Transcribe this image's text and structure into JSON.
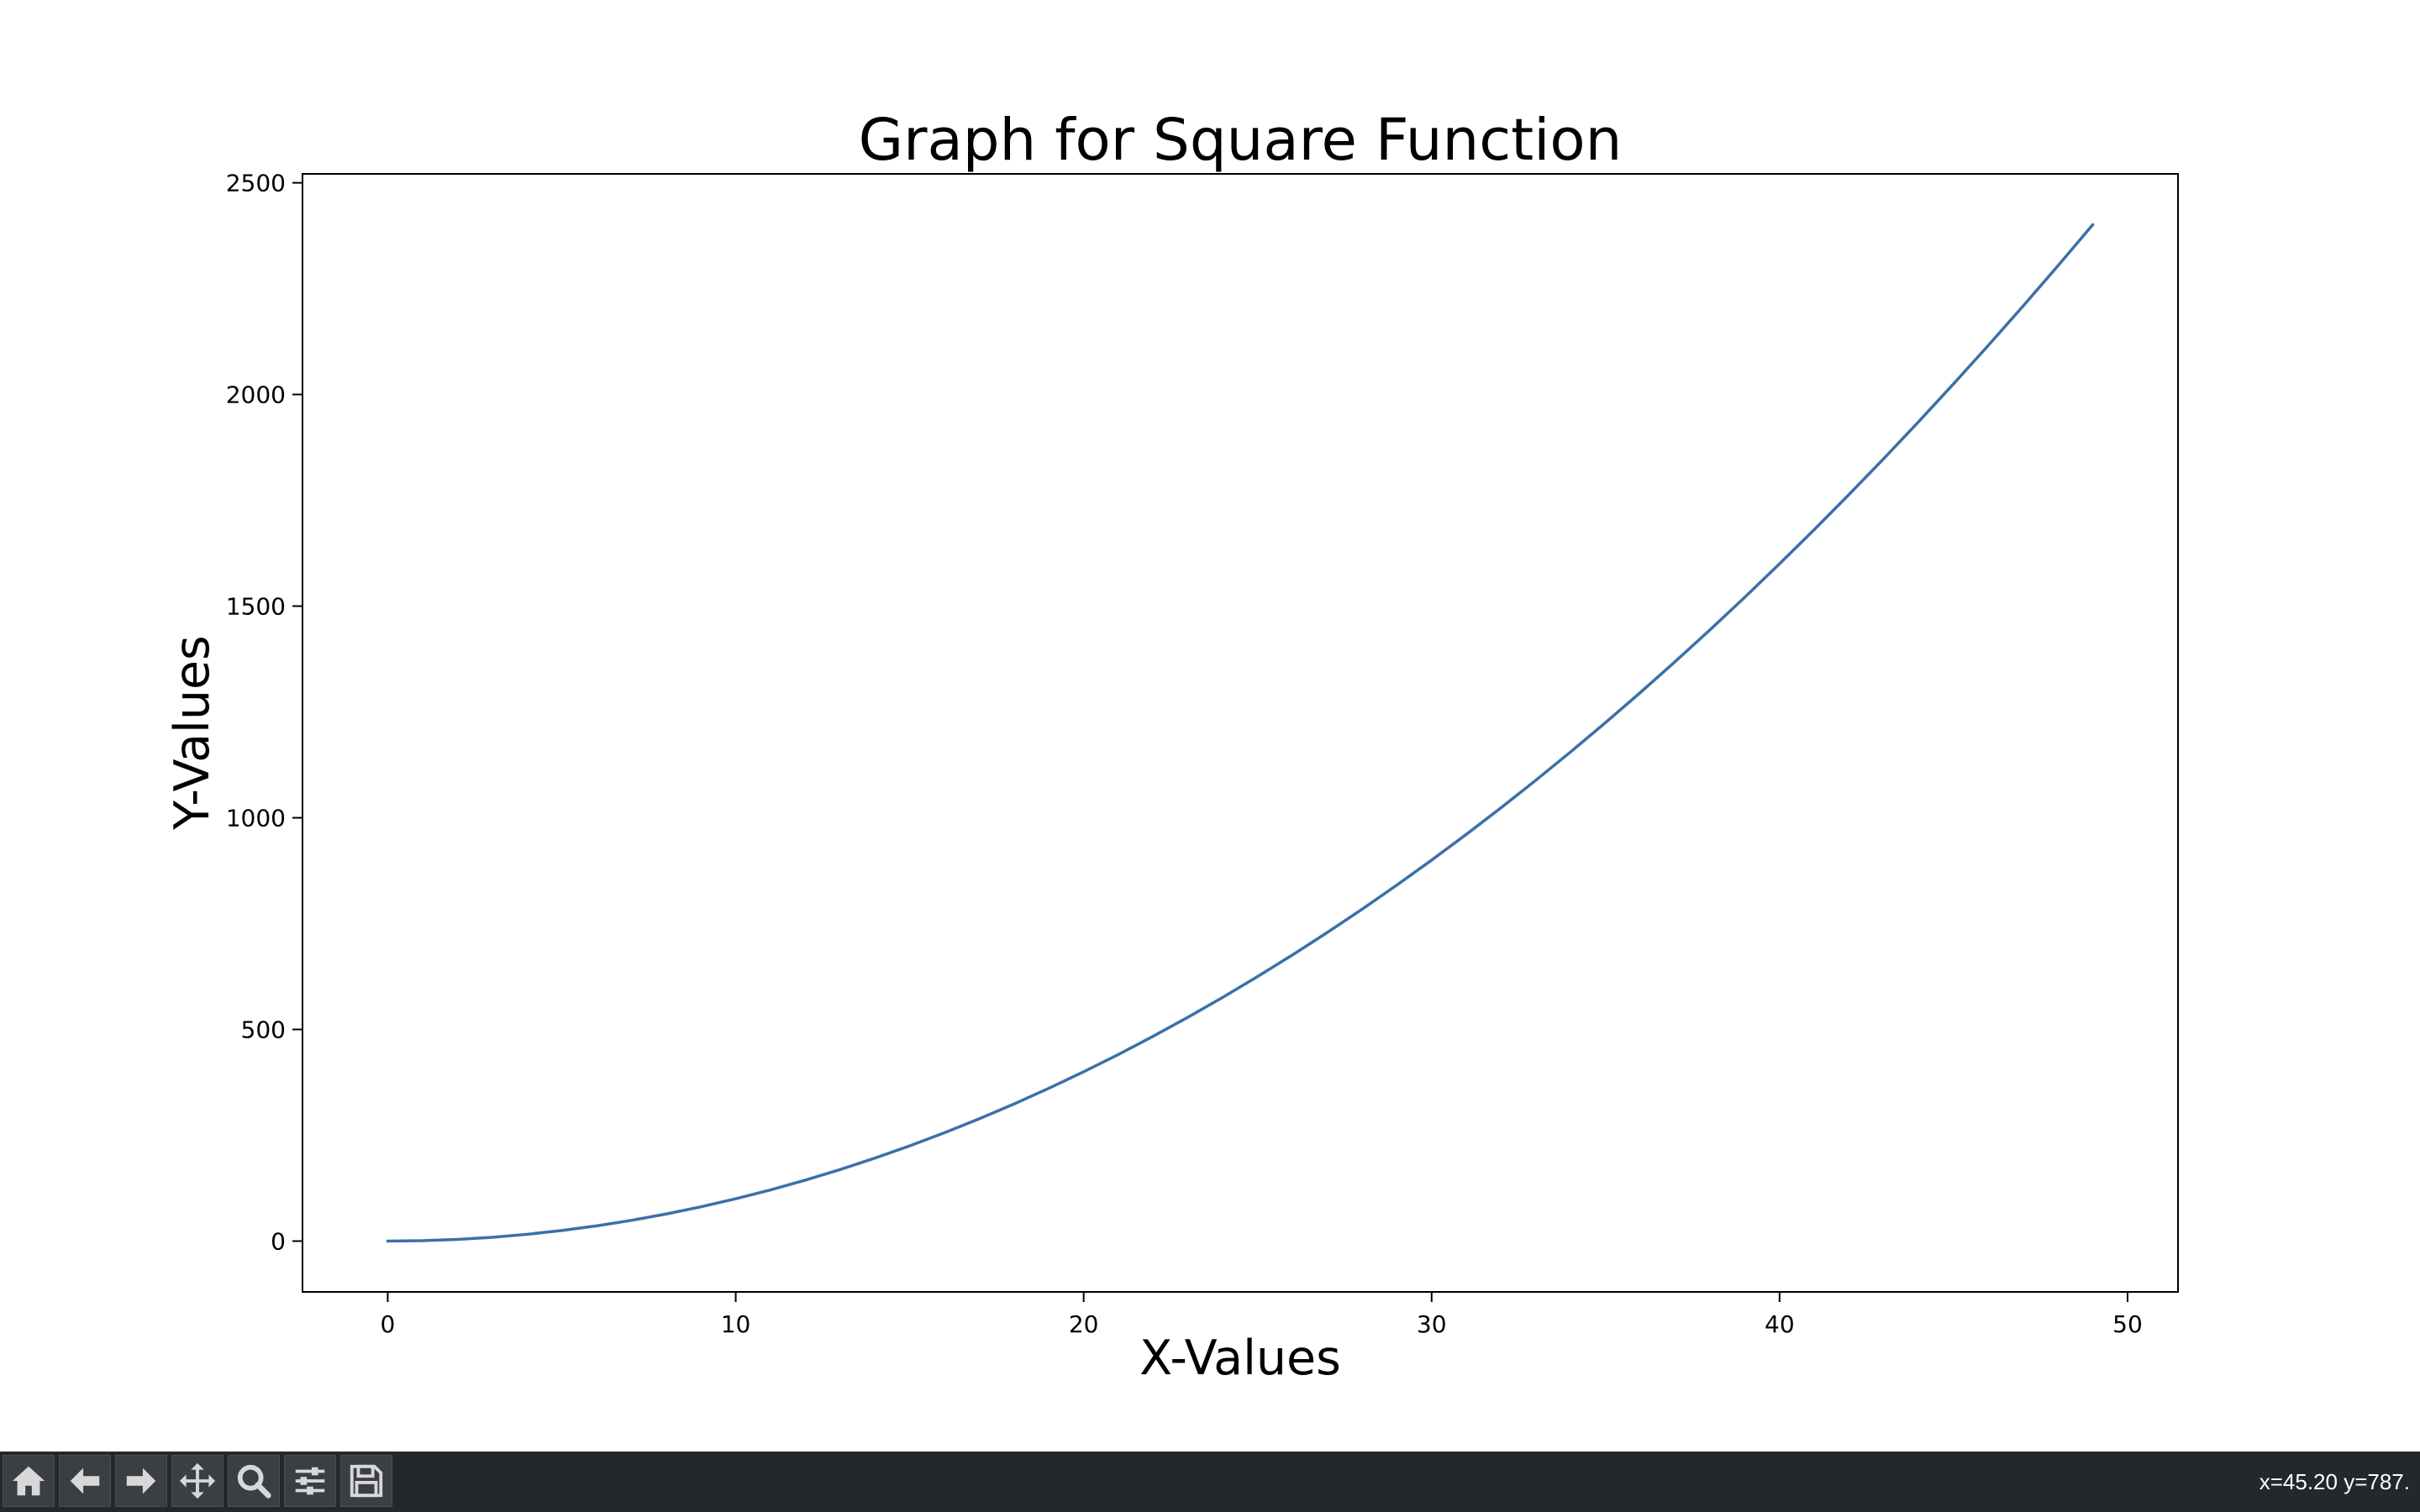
{
  "chart_data": {
    "type": "line",
    "title": "Graph for Square Function",
    "xlabel": "X-Values",
    "ylabel": "Y-Values",
    "xlim": [
      -2.45,
      51.45
    ],
    "ylim": [
      -120.05,
      2521.05
    ],
    "xticks": [
      0,
      10,
      20,
      30,
      40,
      50
    ],
    "yticks": [
      0,
      500,
      1000,
      1500,
      2000,
      2500
    ],
    "grid": false,
    "legend": "none",
    "series": [
      {
        "color": "#3a70a8",
        "x": [
          0,
          1,
          2,
          3,
          4,
          5,
          6,
          7,
          8,
          9,
          10,
          11,
          12,
          13,
          14,
          15,
          16,
          17,
          18,
          19,
          20,
          21,
          22,
          23,
          24,
          25,
          26,
          27,
          28,
          29,
          30,
          31,
          32,
          33,
          34,
          35,
          36,
          37,
          38,
          39,
          40,
          41,
          42,
          43,
          44,
          45,
          46,
          47,
          48,
          49
        ],
        "y": [
          0,
          1,
          4,
          9,
          16,
          25,
          36,
          49,
          64,
          81,
          100,
          121,
          144,
          169,
          196,
          225,
          256,
          289,
          324,
          361,
          400,
          441,
          484,
          529,
          576,
          625,
          676,
          729,
          784,
          841,
          900,
          961,
          1024,
          1089,
          1156,
          1225,
          1296,
          1369,
          1444,
          1521,
          1600,
          1681,
          1764,
          1849,
          1936,
          2025,
          2116,
          2209,
          2304,
          2401
        ]
      }
    ]
  },
  "toolbar": {
    "buttons": [
      {
        "name": "home-button",
        "icon": "home-icon"
      },
      {
        "name": "back-button",
        "icon": "arrow-left-icon"
      },
      {
        "name": "forward-button",
        "icon": "arrow-right-icon"
      },
      {
        "name": "pan-button",
        "icon": "move-icon"
      },
      {
        "name": "zoom-button",
        "icon": "zoom-icon"
      },
      {
        "name": "configure-subplots-button",
        "icon": "sliders-icon"
      },
      {
        "name": "save-button",
        "icon": "save-icon"
      }
    ],
    "coordinates": "x=45.20 y=787."
  }
}
